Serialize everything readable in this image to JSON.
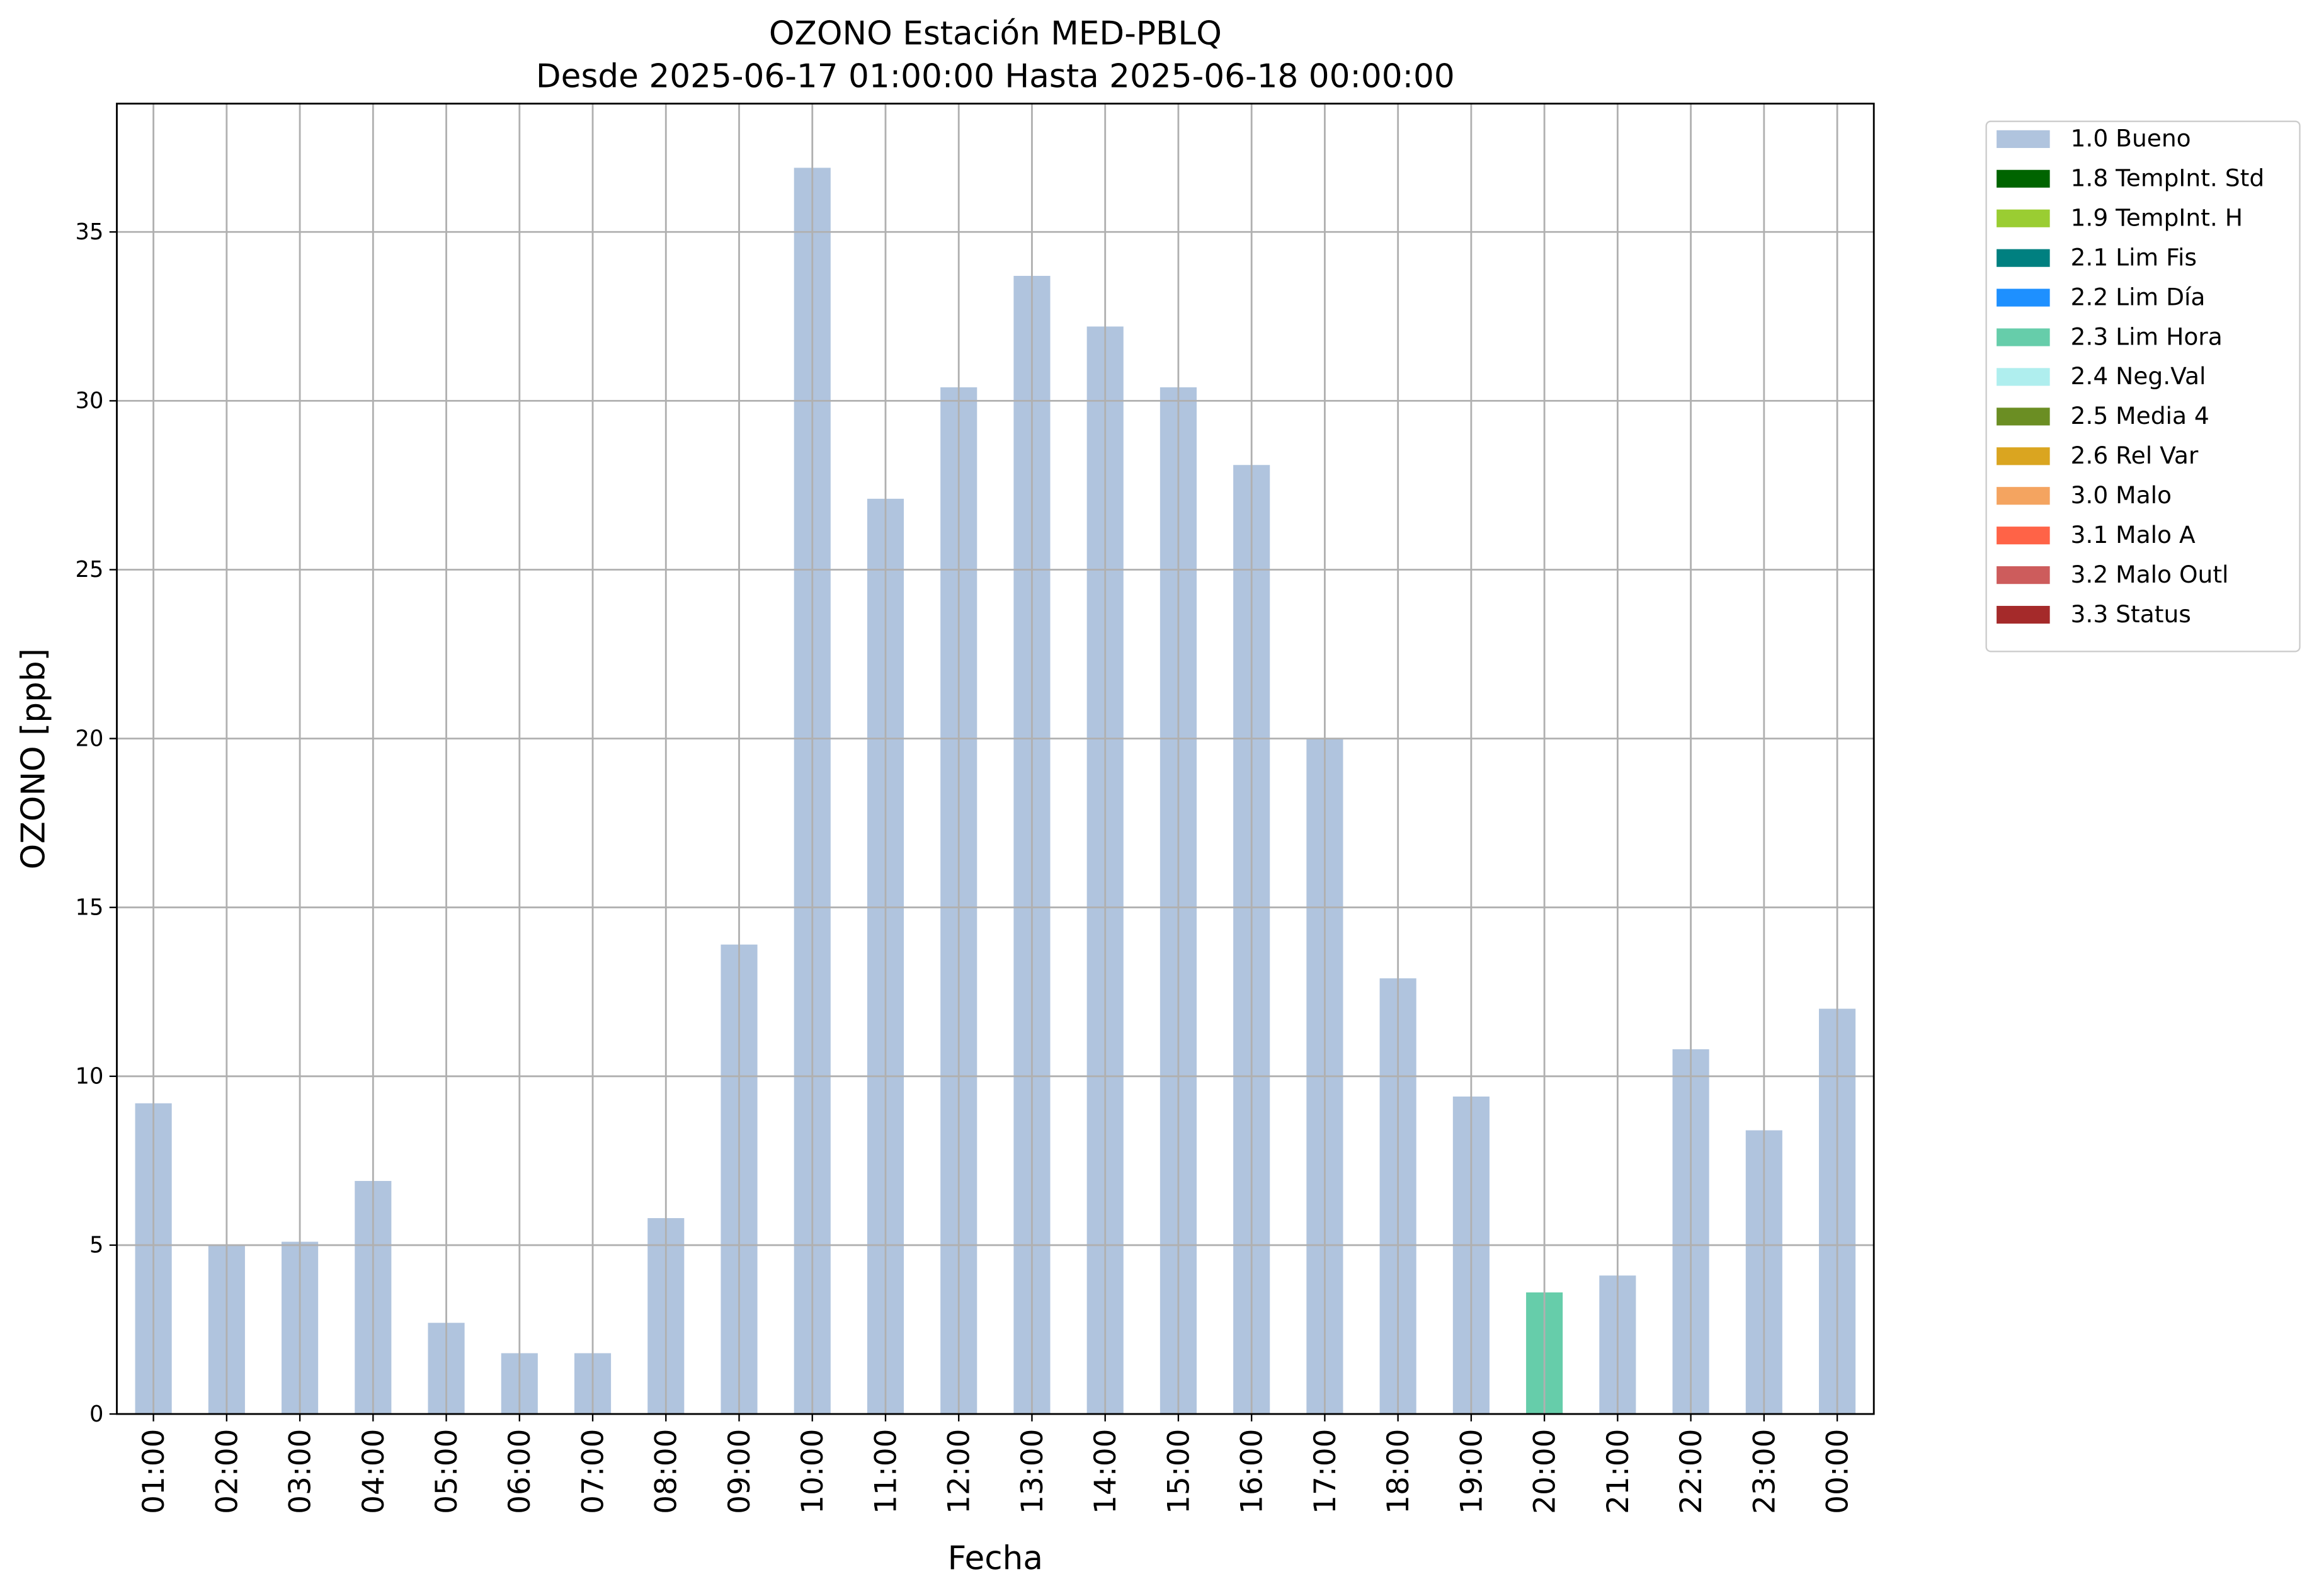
{
  "chart_data": {
    "type": "stacked-bar",
    "title": "OZONO Estación MED-PBLQ",
    "subtitle": "Desde 2025-06-17 01:00:00 Hasta 2025-06-18 00:00:00",
    "x_label": "Fecha",
    "y_label": "OZONO [ppb]",
    "categories": [
      "01:00",
      "02:00",
      "03:00",
      "04:00",
      "05:00",
      "06:00",
      "07:00",
      "08:00",
      "09:00",
      "10:00",
      "11:00",
      "12:00",
      "13:00",
      "14:00",
      "15:00",
      "16:00",
      "17:00",
      "18:00",
      "19:00",
      "20:00",
      "21:00",
      "22:00",
      "23:00",
      "00:00"
    ],
    "series": [
      {
        "name": "1.0 Bueno",
        "color": "#b0c4de",
        "values": [
          9.2,
          5.0,
          5.1,
          6.9,
          2.7,
          1.8,
          1.8,
          5.8,
          13.9,
          36.9,
          27.1,
          30.4,
          33.7,
          32.2,
          30.4,
          28.1,
          20.0,
          12.9,
          9.4,
          null,
          4.1,
          10.8,
          8.4,
          12.0
        ]
      },
      {
        "name": "1.8 TempInt. Std",
        "color": "#006400",
        "values": [
          null,
          null,
          null,
          null,
          null,
          null,
          null,
          null,
          null,
          null,
          null,
          null,
          null,
          null,
          null,
          null,
          null,
          null,
          null,
          null,
          null,
          null,
          null,
          null
        ]
      },
      {
        "name": "1.9 TempInt. H",
        "color": "#9acd32",
        "values": [
          null,
          null,
          null,
          null,
          null,
          null,
          null,
          null,
          null,
          null,
          null,
          null,
          null,
          null,
          null,
          null,
          null,
          null,
          null,
          null,
          null,
          null,
          null,
          null
        ]
      },
      {
        "name": "2.1 Lim Fis",
        "color": "#008080",
        "values": [
          null,
          null,
          null,
          null,
          null,
          null,
          null,
          null,
          null,
          null,
          null,
          null,
          null,
          null,
          null,
          null,
          null,
          null,
          null,
          null,
          null,
          null,
          null,
          null
        ]
      },
      {
        "name": "2.2 Lim Día",
        "color": "#1e90ff",
        "values": [
          null,
          null,
          null,
          null,
          null,
          null,
          null,
          null,
          null,
          null,
          null,
          null,
          null,
          null,
          null,
          null,
          null,
          null,
          null,
          null,
          null,
          null,
          null,
          null
        ]
      },
      {
        "name": "2.3 Lim Hora",
        "color": "#66cdaa",
        "values": [
          null,
          null,
          null,
          null,
          null,
          null,
          null,
          null,
          null,
          null,
          null,
          null,
          null,
          null,
          null,
          null,
          null,
          null,
          null,
          3.6,
          null,
          null,
          null,
          null
        ]
      },
      {
        "name": "2.4 Neg.Val",
        "color": "#afeeee",
        "values": [
          null,
          null,
          null,
          null,
          null,
          null,
          null,
          null,
          null,
          null,
          null,
          null,
          null,
          null,
          null,
          null,
          null,
          null,
          null,
          null,
          null,
          null,
          null,
          null
        ]
      },
      {
        "name": "2.5 Media 4",
        "color": "#6b8e23",
        "values": [
          null,
          null,
          null,
          null,
          null,
          null,
          null,
          null,
          null,
          null,
          null,
          null,
          null,
          null,
          null,
          null,
          null,
          null,
          null,
          null,
          null,
          null,
          null,
          null
        ]
      },
      {
        "name": "2.6 Rel Var",
        "color": "#daa520",
        "values": [
          null,
          null,
          null,
          null,
          null,
          null,
          null,
          null,
          null,
          null,
          null,
          null,
          null,
          null,
          null,
          null,
          null,
          null,
          null,
          null,
          null,
          null,
          null,
          null
        ]
      },
      {
        "name": "3.0 Malo",
        "color": "#f4a460",
        "values": [
          null,
          null,
          null,
          null,
          null,
          null,
          null,
          null,
          null,
          null,
          null,
          null,
          null,
          null,
          null,
          null,
          null,
          null,
          null,
          null,
          null,
          null,
          null,
          null
        ]
      },
      {
        "name": "3.1 Malo A",
        "color": "#ff6347",
        "values": [
          null,
          null,
          null,
          null,
          null,
          null,
          null,
          null,
          null,
          null,
          null,
          null,
          null,
          null,
          null,
          null,
          null,
          null,
          null,
          null,
          null,
          null,
          null,
          null
        ]
      },
      {
        "name": "3.2 Malo Outl",
        "color": "#cd5c5c",
        "values": [
          null,
          null,
          null,
          null,
          null,
          null,
          null,
          null,
          null,
          null,
          null,
          null,
          null,
          null,
          null,
          null,
          null,
          null,
          null,
          null,
          null,
          null,
          null,
          null
        ]
      },
      {
        "name": "3.3 Status",
        "color": "#a52a2a",
        "values": [
          null,
          null,
          null,
          null,
          null,
          null,
          null,
          null,
          null,
          null,
          null,
          null,
          null,
          null,
          null,
          null,
          null,
          null,
          null,
          null,
          null,
          null,
          null,
          null
        ]
      }
    ],
    "ylim": [
      0,
      38.8
    ],
    "yticks": [
      0,
      5,
      10,
      15,
      20,
      25,
      30,
      35
    ],
    "grid": true,
    "legend": "outside-right"
  }
}
